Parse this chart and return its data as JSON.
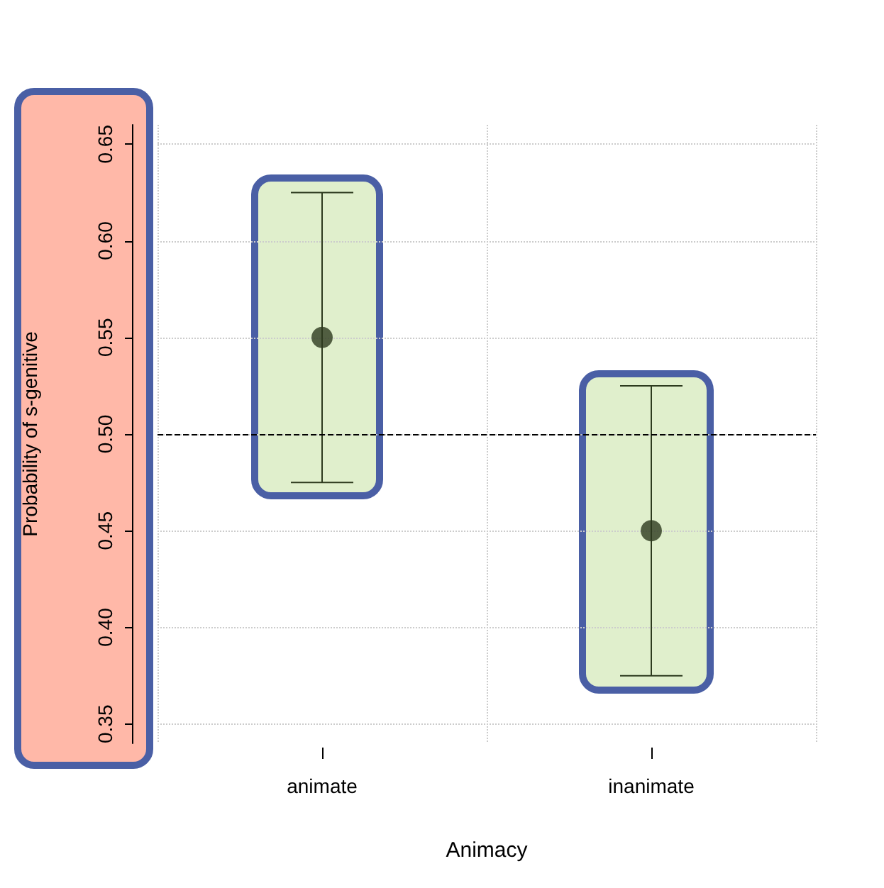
{
  "chart_data": {
    "type": "scatter",
    "xlabel": "Animacy",
    "ylabel": "Probability of s-genitive",
    "categories": [
      "animate",
      "inanimate"
    ],
    "series": [
      {
        "color": "#2d3a1e",
        "values": [
          0.55,
          0.45
        ],
        "errors": [
          [
            0.475,
            0.625
          ],
          [
            0.375,
            0.525
          ]
        ]
      }
    ],
    "ylim": [
      0.34,
      0.66
    ],
    "yticks": [
      {
        "value": 0.35,
        "label": "0.35"
      },
      {
        "value": 0.4,
        "label": "0.40"
      },
      {
        "value": 0.45,
        "label": "0.45"
      },
      {
        "value": 0.5,
        "label": "0.50"
      },
      {
        "value": 0.55,
        "label": "0.55"
      },
      {
        "value": 0.6,
        "label": "0.60"
      },
      {
        "value": 0.65,
        "label": "0.65"
      }
    ],
    "ref_lines": [
      {
        "axis": "y",
        "value": 0.5,
        "line_style": "dashed",
        "color": "#000000"
      }
    ],
    "grid": true,
    "marker": "circle"
  }
}
